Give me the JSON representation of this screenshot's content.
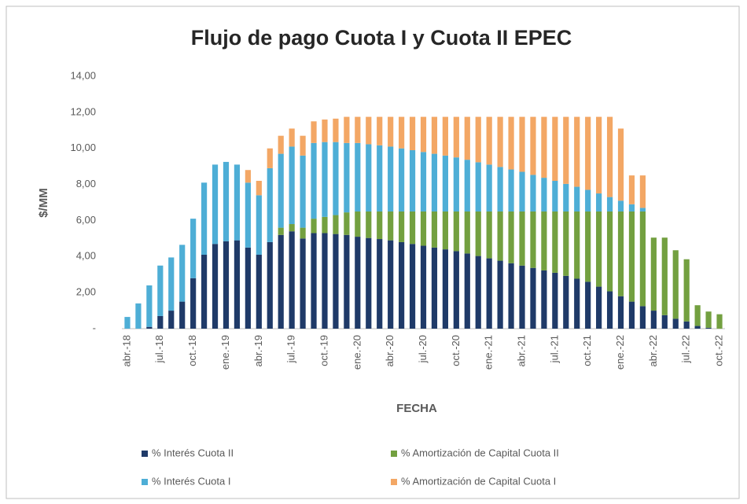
{
  "chart_data": {
    "type": "stacked_bar",
    "title": "Flujo de pago Cuota I y Cuota II EPEC",
    "x_label": "FECHA",
    "y_label": "$/MM",
    "categories": [
      "abr.-18",
      null,
      null,
      "jul.-18",
      null,
      null,
      "oct.-18",
      null,
      null,
      "ene.-19",
      null,
      null,
      "abr.-19",
      null,
      null,
      "jul.-19",
      null,
      null,
      "oct.-19",
      null,
      null,
      "ene.-20",
      null,
      null,
      "abr.-20",
      null,
      null,
      "jul.-20",
      null,
      null,
      "oct.-20",
      null,
      null,
      "ene.-21",
      null,
      null,
      "abr.-21",
      null,
      null,
      "jul.-21",
      null,
      null,
      "oct.-21",
      null,
      null,
      "ene.-22",
      null,
      null,
      "abr.-22",
      null,
      null,
      "jul.-22",
      null,
      null,
      "oct.-22"
    ],
    "series": [
      {
        "name": "% Interés Cuota II",
        "color": "#1f3a68",
        "values": [
          0,
          0,
          0.1,
          0.7,
          1.0,
          1.5,
          2.8,
          4.1,
          4.7,
          4.85,
          4.9,
          4.5,
          4.1,
          4.8,
          5.2,
          5.4,
          5.0,
          5.3,
          5.3,
          5.25,
          5.2,
          5.1,
          5.03,
          4.97,
          4.9,
          4.8,
          4.7,
          4.6,
          4.5,
          4.4,
          4.3,
          4.17,
          4.03,
          3.9,
          3.77,
          3.63,
          3.5,
          3.37,
          3.23,
          3.1,
          2.93,
          2.77,
          2.6,
          2.33,
          2.07,
          1.8,
          1.5,
          1.25,
          1.0,
          0.75,
          0.55,
          0.4,
          0.15,
          0.05,
          0
        ]
      },
      {
        "name": "% Amortización de Capital Cuota II",
        "color": "#73a040",
        "values": [
          0,
          0,
          0,
          0,
          0,
          0,
          0,
          0,
          0,
          0,
          0,
          0,
          0,
          0,
          0.4,
          0.4,
          0.6,
          0.8,
          0.9,
          1.05,
          1.25,
          1.4,
          1.47,
          1.53,
          1.6,
          1.7,
          1.8,
          1.9,
          2.0,
          2.1,
          2.2,
          2.33,
          2.47,
          2.6,
          2.73,
          2.87,
          3.0,
          3.13,
          3.27,
          3.4,
          3.57,
          3.73,
          3.9,
          4.17,
          4.43,
          4.7,
          5.0,
          5.25,
          4.05,
          4.3,
          3.8,
          3.45,
          1.15,
          0.9,
          0.8
        ]
      },
      {
        "name": "% Interés Cuota I",
        "color": "#4eaed6",
        "values": [
          0.65,
          1.4,
          2.3,
          2.8,
          2.95,
          3.15,
          3.3,
          4.0,
          4.4,
          4.4,
          4.2,
          3.6,
          3.3,
          4.1,
          4.1,
          4.3,
          4.0,
          4.2,
          4.15,
          4.05,
          3.85,
          3.8,
          3.73,
          3.67,
          3.6,
          3.5,
          3.4,
          3.3,
          3.2,
          3.1,
          3.0,
          2.87,
          2.73,
          2.6,
          2.47,
          2.33,
          2.2,
          2.03,
          1.87,
          1.7,
          1.53,
          1.37,
          1.2,
          1.0,
          0.8,
          0.6,
          0.4,
          0.2,
          0,
          0,
          0,
          0,
          0,
          0,
          0
        ]
      },
      {
        "name": "% Amortización de Capital Cuota I",
        "color": "#f3a765",
        "values": [
          0,
          0,
          0,
          0,
          0,
          0,
          0,
          0,
          0,
          0,
          0,
          0.7,
          0.8,
          1.1,
          1.0,
          1.0,
          1.1,
          1.2,
          1.25,
          1.3,
          1.45,
          1.45,
          1.52,
          1.58,
          1.65,
          1.75,
          1.85,
          1.95,
          2.05,
          2.15,
          2.25,
          2.38,
          2.52,
          2.65,
          2.78,
          2.92,
          3.05,
          3.22,
          3.38,
          3.55,
          3.72,
          3.88,
          4.05,
          4.25,
          4.45,
          4.0,
          1.6,
          1.8,
          0,
          0,
          0,
          0,
          0,
          0,
          0
        ]
      }
    ],
    "ylim": [
      0,
      14
    ],
    "yticks": [
      {
        "value": 0,
        "label": "-"
      },
      {
        "value": 2,
        "label": "2,00"
      },
      {
        "value": 4,
        "label": "4,00"
      },
      {
        "value": 6,
        "label": "6,00"
      },
      {
        "value": 8,
        "label": "8,00"
      },
      {
        "value": 10,
        "label": "10,00"
      },
      {
        "value": 12,
        "label": "12,00"
      },
      {
        "value": 14,
        "label": "14,00"
      }
    ],
    "grid": false,
    "legend": "bottom"
  }
}
